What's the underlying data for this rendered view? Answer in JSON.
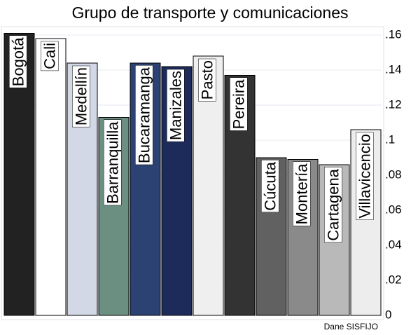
{
  "chart_data": {
    "type": "bar",
    "title": "Grupo de transporte y comunicaciones",
    "categories": [
      "Bogotá",
      "Cali",
      "Medellín",
      "Barranquilla",
      "Bucaramanga",
      "Manizales",
      "Pasto",
      "Pereira",
      "Cúcuta",
      "Montería",
      "Cartagena",
      "Villavicencio"
    ],
    "values": [
      0.161,
      0.158,
      0.144,
      0.113,
      0.144,
      0.142,
      0.148,
      0.137,
      0.09,
      0.089,
      0.086,
      0.106
    ],
    "colors": [
      "#222222",
      "#ffffff",
      "#d2d8e6",
      "#6b8f80",
      "#2b4272",
      "#1d2b5b",
      "#efefef",
      "#333333",
      "#616161",
      "#8a8a8a",
      "#b9b9b9",
      "#ededed"
    ],
    "ylim": [
      0,
      0.16
    ],
    "yticks": [
      0,
      {
        "value": 0.02,
        "label": ".02"
      },
      {
        "value": 0.04,
        "label": ".04"
      },
      {
        "value": 0.06,
        "label": ".06"
      },
      {
        "value": 0.08,
        "label": ".08"
      },
      {
        "value": 0.1,
        "label": ".1"
      },
      {
        "value": 0.12,
        "label": ".12"
      },
      {
        "value": 0.14,
        "label": ".14"
      },
      {
        "value": 0.16,
        "label": ".16"
      }
    ],
    "grid": true,
    "yaxis_side": "right",
    "source": "Dane SISFIJO"
  }
}
